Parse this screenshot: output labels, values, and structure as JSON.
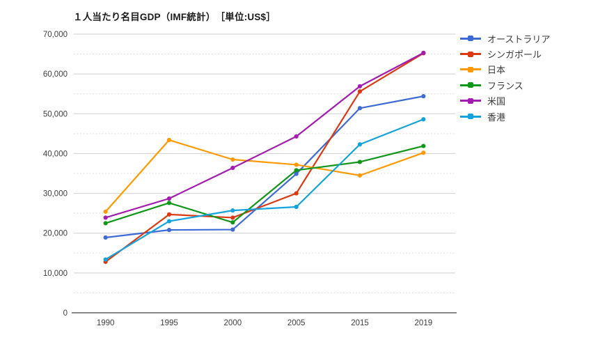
{
  "title": "１人当たり名目GDP（IMF統計）　［単位:US$］",
  "chart_data": {
    "type": "line",
    "title": "１人当たり名目GDP（IMF統計）",
    "unit_label": "［単位:US$］",
    "categories": [
      "1990",
      "1995",
      "2000",
      "2005",
      "2015",
      "2019"
    ],
    "series": [
      {
        "id": "australia",
        "name": "オーストラリア",
        "color": "#3D6BD6",
        "values": [
          18900,
          20800,
          20900,
          34900,
          51400,
          54400
        ]
      },
      {
        "id": "singapore",
        "name": "シンガポール",
        "color": "#DC3912",
        "values": [
          12800,
          24700,
          23900,
          30000,
          55600,
          65200
        ]
      },
      {
        "id": "japan",
        "name": "日本",
        "color": "#FF9900",
        "values": [
          25400,
          43400,
          38500,
          37200,
          34500,
          40200
        ]
      },
      {
        "id": "france",
        "name": "フランス",
        "color": "#109618",
        "values": [
          22500,
          27600,
          22700,
          35800,
          37900,
          41900
        ]
      },
      {
        "id": "usa",
        "name": "米国",
        "color": "#A21CAF",
        "values": [
          23900,
          28700,
          36400,
          44300,
          56900,
          65300
        ]
      },
      {
        "id": "hongkong",
        "name": "香港",
        "color": "#14A2DC",
        "values": [
          13400,
          23000,
          25700,
          26600,
          42300,
          48600
        ]
      }
    ],
    "xlabel": "",
    "ylabel": "",
    "ylim": [
      0,
      70000
    ],
    "y_major_step": 10000,
    "y_minor_step": 5000,
    "y_tick_labels": [
      "0",
      "10,000",
      "20,000",
      "30,000",
      "40,000",
      "50,000",
      "60,000",
      "70,000"
    ],
    "grid": true,
    "legend_position": "right",
    "colors": {
      "major_gridline": "#cfcfcf",
      "minor_gridline": "#dddddd",
      "axis_line": "#424242",
      "tick_text": "#3d3d3d"
    }
  }
}
